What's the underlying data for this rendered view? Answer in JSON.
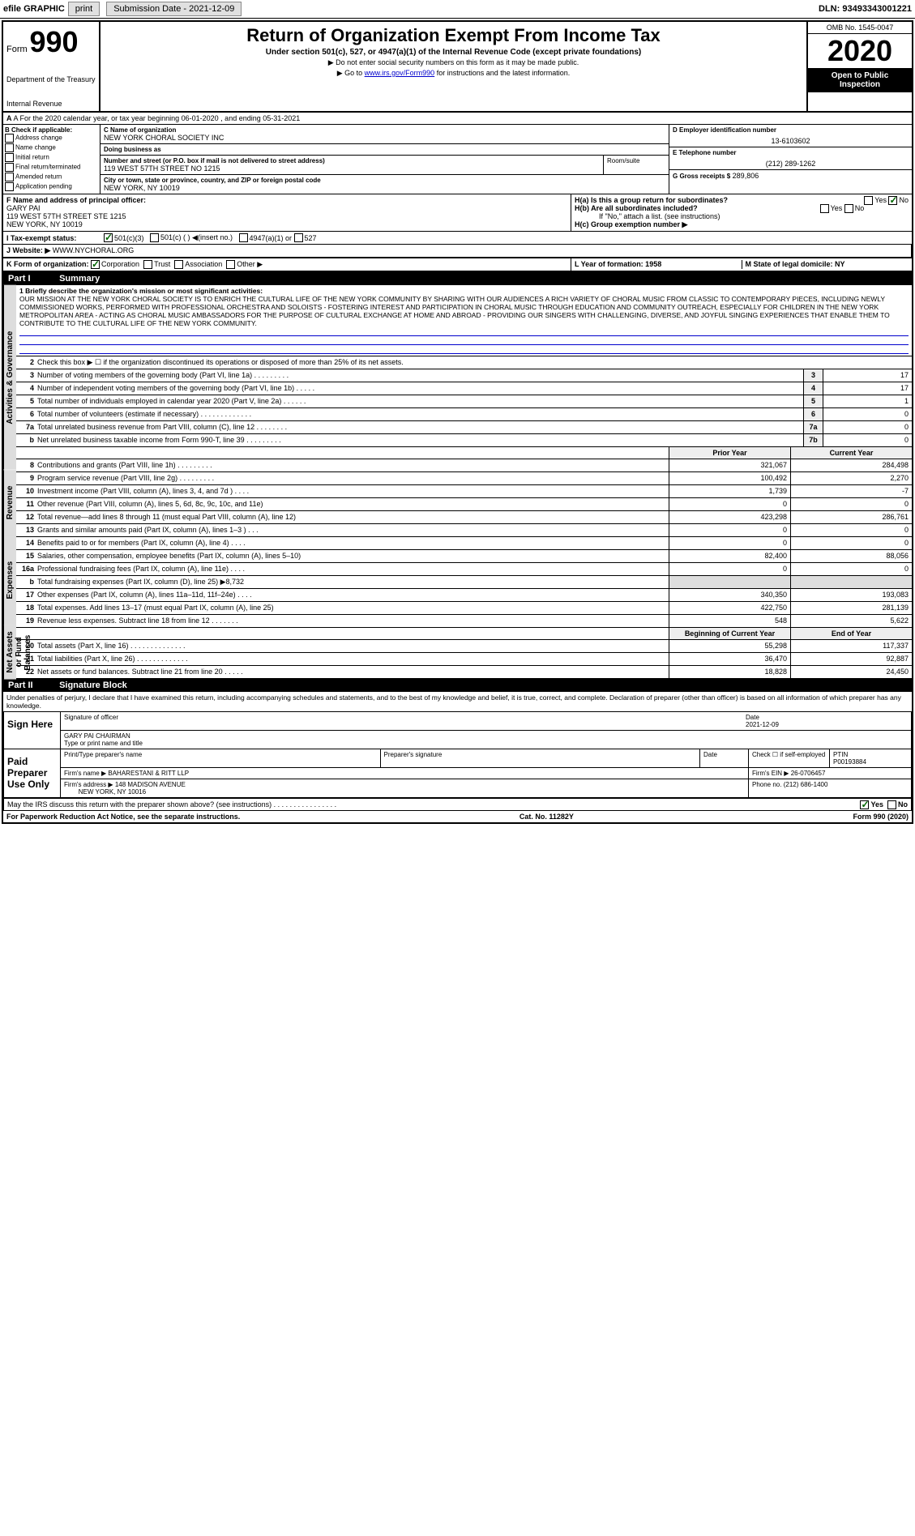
{
  "topbar": {
    "efile": "efile GRAPHIC",
    "print": "print",
    "subdate_label": "Submission Date - 2021-12-09",
    "dln": "DLN: 93493343001221"
  },
  "header": {
    "form_label": "Form",
    "form_no": "990",
    "dept": "Department of the Treasury",
    "irs": "Internal Revenue",
    "title": "Return of Organization Exempt From Income Tax",
    "subtitle": "Under section 501(c), 527, or 4947(a)(1) of the Internal Revenue Code (except private foundations)",
    "note1": "▶ Do not enter social security numbers on this form as it may be made public.",
    "note2": "▶ Go to www.irs.gov/Form990 for instructions and the latest information.",
    "omb": "OMB No. 1545-0047",
    "year": "2020",
    "open": "Open to Public Inspection"
  },
  "rowA": {
    "text": "A For the 2020 calendar year, or tax year beginning 06-01-2020    , and ending 05-31-2021"
  },
  "colB": {
    "label": "B Check if applicable:",
    "items": [
      "Address change",
      "Name change",
      "Initial return",
      "Final return/terminated",
      "Amended return",
      "Application pending"
    ]
  },
  "colC": {
    "name_label": "C Name of organization",
    "name": "NEW YORK CHORAL SOCIETY INC",
    "dba_label": "Doing business as",
    "dba": "",
    "street_label": "Number and street (or P.O. box if mail is not delivered to street address)",
    "street": "119 WEST 57TH STREET NO 1215",
    "room_label": "Room/suite",
    "city_label": "City or town, state or province, country, and ZIP or foreign postal code",
    "city": "NEW YORK, NY  10019"
  },
  "colD": {
    "ein_label": "D Employer identification number",
    "ein": "13-6103602",
    "phone_label": "E Telephone number",
    "phone": "(212) 289-1262",
    "gross_label": "G Gross receipts $",
    "gross": "289,806"
  },
  "rowF": {
    "label": "F  Name and address of principal officer:",
    "name": "GARY PAI",
    "addr1": "119 WEST 57TH STREET STE 1215",
    "addr2": "NEW YORK, NY  10019"
  },
  "rowH": {
    "ha": "H(a)  Is this a group return for subordinates?",
    "hb": "H(b)  Are all subordinates included?",
    "hb_note": "If \"No,\" attach a list. (see instructions)",
    "hc": "H(c)  Group exemption number ▶",
    "yes": "Yes",
    "no": "No"
  },
  "rowI": {
    "label": "I  Tax-exempt status:",
    "opt1": "501(c)(3)",
    "opt2": "501(c) (  ) ◀(insert no.)",
    "opt3": "4947(a)(1) or",
    "opt4": "527"
  },
  "rowJ": {
    "label": "J  Website: ▶",
    "value": "WWW.NYCHORAL.ORG"
  },
  "rowK": {
    "label": "K Form of organization:",
    "corp": "Corporation",
    "trust": "Trust",
    "assoc": "Association",
    "other": "Other ▶"
  },
  "rowL": {
    "label": "L Year of formation: 1958"
  },
  "rowM": {
    "label": "M State of legal domicile: NY"
  },
  "part1": {
    "header": "Part I",
    "title": "Summary",
    "tab1": "Activities & Governance",
    "tab2": "Revenue",
    "tab3": "Expenses",
    "tab4": "Net Assets or Fund Balances",
    "line1_label": "1  Briefly describe the organization's mission or most significant activities:",
    "mission": "OUR MISSION AT THE NEW YORK CHORAL SOCIETY IS TO ENRICH THE CULTURAL LIFE OF THE NEW YORK COMMUNITY BY SHARING WITH OUR AUDIENCES A RICH VARIETY OF CHORAL MUSIC FROM CLASSIC TO CONTEMPORARY PIECES, INCLUDING NEWLY COMMISSIONED WORKS, PERFORMED WITH PROFESSIONAL ORCHESTRA AND SOLOISTS - FOSTERING INTEREST AND PARTICIPATION IN CHORAL MUSIC THROUGH EDUCATION AND COMMUNITY OUTREACH, ESPECIALLY FOR CHILDREN IN THE NEW YORK METROPOLITAN AREA - ACTING AS CHORAL MUSIC AMBASSADORS FOR THE PURPOSE OF CULTURAL EXCHANGE AT HOME AND ABROAD - PROVIDING OUR SINGERS WITH CHALLENGING, DIVERSE, AND JOYFUL SINGING EXPERIENCES THAT ENABLE THEM TO CONTRIBUTE TO THE CULTURAL LIFE OF THE NEW YORK COMMUNITY.",
    "line2": "Check this box ▶ ☐  if the organization discontinued its operations or disposed of more than 25% of its net assets.",
    "lines_gov": [
      {
        "n": "3",
        "t": "Number of voting members of the governing body (Part VI, line 1a)  .    .    .    .    .    .    .    .    .",
        "c": "3",
        "v": "17"
      },
      {
        "n": "4",
        "t": "Number of independent voting members of the governing body (Part VI, line 1b)  .    .    .    .    .",
        "c": "4",
        "v": "17"
      },
      {
        "n": "5",
        "t": "Total number of individuals employed in calendar year 2020 (Part V, line 2a)  .    .    .    .    .    .",
        "c": "5",
        "v": "1"
      },
      {
        "n": "6",
        "t": "Total number of volunteers (estimate if necessary)   .    .    .    .    .    .    .    .    .    .    .    .    .",
        "c": "6",
        "v": "0"
      },
      {
        "n": "7a",
        "t": "Total unrelated business revenue from Part VIII, column (C), line 12   .    .    .    .    .    .    .    .",
        "c": "7a",
        "v": "0"
      },
      {
        "n": "b",
        "t": "Net unrelated business taxable income from Form 990-T, line 39   .    .    .    .    .    .    .    .    .",
        "c": "7b",
        "v": "0"
      }
    ],
    "prior_h": "Prior Year",
    "current_h": "Current Year",
    "lines_rev": [
      {
        "n": "8",
        "t": "Contributions and grants (Part VIII, line 1h)   .    .    .    .    .    .    .    .    .",
        "p": "321,067",
        "c": "284,498"
      },
      {
        "n": "9",
        "t": "Program service revenue (Part VIII, line 2g)   .    .    .    .    .    .    .    .    .",
        "p": "100,492",
        "c": "2,270"
      },
      {
        "n": "10",
        "t": "Investment income (Part VIII, column (A), lines 3, 4, and 7d )   .    .    .    .",
        "p": "1,739",
        "c": "-7"
      },
      {
        "n": "11",
        "t": "Other revenue (Part VIII, column (A), lines 5, 6d, 8c, 9c, 10c, and 11e)",
        "p": "0",
        "c": "0"
      },
      {
        "n": "12",
        "t": "Total revenue—add lines 8 through 11 (must equal Part VIII, column (A), line 12)",
        "p": "423,298",
        "c": "286,761"
      }
    ],
    "lines_exp": [
      {
        "n": "13",
        "t": "Grants and similar amounts paid (Part IX, column (A), lines 1–3 )   .    .    .",
        "p": "0",
        "c": "0"
      },
      {
        "n": "14",
        "t": "Benefits paid to or for members (Part IX, column (A), line 4)   .    .    .    .",
        "p": "0",
        "c": "0"
      },
      {
        "n": "15",
        "t": "Salaries, other compensation, employee benefits (Part IX, column (A), lines 5–10)",
        "p": "82,400",
        "c": "88,056"
      },
      {
        "n": "16a",
        "t": "Professional fundraising fees (Part IX, column (A), line 11e)   .    .    .    .",
        "p": "0",
        "c": "0"
      },
      {
        "n": "b",
        "t": "Total fundraising expenses (Part IX, column (D), line 25) ▶8,732",
        "p": "",
        "c": "",
        "shade": true
      },
      {
        "n": "17",
        "t": "Other expenses (Part IX, column (A), lines 11a–11d, 11f–24e)   .    .    .    .",
        "p": "340,350",
        "c": "193,083"
      },
      {
        "n": "18",
        "t": "Total expenses. Add lines 13–17 (must equal Part IX, column (A), line 25)",
        "p": "422,750",
        "c": "281,139"
      },
      {
        "n": "19",
        "t": "Revenue less expenses. Subtract line 18 from line 12   .    .    .    .    .    .    .",
        "p": "548",
        "c": "5,622"
      }
    ],
    "begin_h": "Beginning of Current Year",
    "end_h": "End of Year",
    "lines_net": [
      {
        "n": "20",
        "t": "Total assets (Part X, line 16)   .    .    .    .    .    .    .    .    .    .    .    .    .    .",
        "p": "55,298",
        "c": "117,337"
      },
      {
        "n": "21",
        "t": "Total liabilities (Part X, line 26)   .    .    .    .    .    .    .    .    .    .    .    .    .",
        "p": "36,470",
        "c": "92,887"
      },
      {
        "n": "22",
        "t": "Net assets or fund balances. Subtract line 21 from line 20   .    .    .    .    .",
        "p": "18,828",
        "c": "24,450"
      }
    ]
  },
  "part2": {
    "header": "Part II",
    "title": "Signature Block",
    "declare": "Under penalties of perjury, I declare that I have examined this return, including accompanying schedules and statements, and to the best of my knowledge and belief, it is true, correct, and complete. Declaration of preparer (other than officer) is based on all information of which preparer has any knowledge.",
    "sign_here": "Sign Here",
    "sig_officer": "Signature of officer",
    "sig_date": "Date",
    "sig_date_val": "2021-12-09",
    "officer_name": "GARY PAI  CHAIRMAN",
    "type_name": "Type or print name and title",
    "paid": "Paid Preparer Use Only",
    "prep_name_h": "Print/Type preparer's name",
    "prep_sig_h": "Preparer's signature",
    "prep_date_h": "Date",
    "prep_check": "Check ☐ if self-employed",
    "ptin_h": "PTIN",
    "ptin": "P00193884",
    "firm_name_h": "Firm's name    ▶",
    "firm_name": "BAHARESTANI & RITT LLP",
    "firm_ein_h": "Firm's EIN ▶",
    "firm_ein": "26-0706457",
    "firm_addr_h": "Firm's address ▶",
    "firm_addr1": "148 MADISON AVENUE",
    "firm_addr2": "NEW YORK, NY  10016",
    "firm_phone_h": "Phone no.",
    "firm_phone": "(212) 686-1400",
    "may_irs": "May the IRS discuss this return with the preparer shown above? (see instructions)   .    .    .    .    .    .    .    .    .    .    .    .    .    .    .    .",
    "yes": "Yes",
    "no": "No"
  },
  "footer": {
    "left": "For Paperwork Reduction Act Notice, see the separate instructions.",
    "mid": "Cat. No. 11282Y",
    "right": "Form 990 (2020)"
  }
}
